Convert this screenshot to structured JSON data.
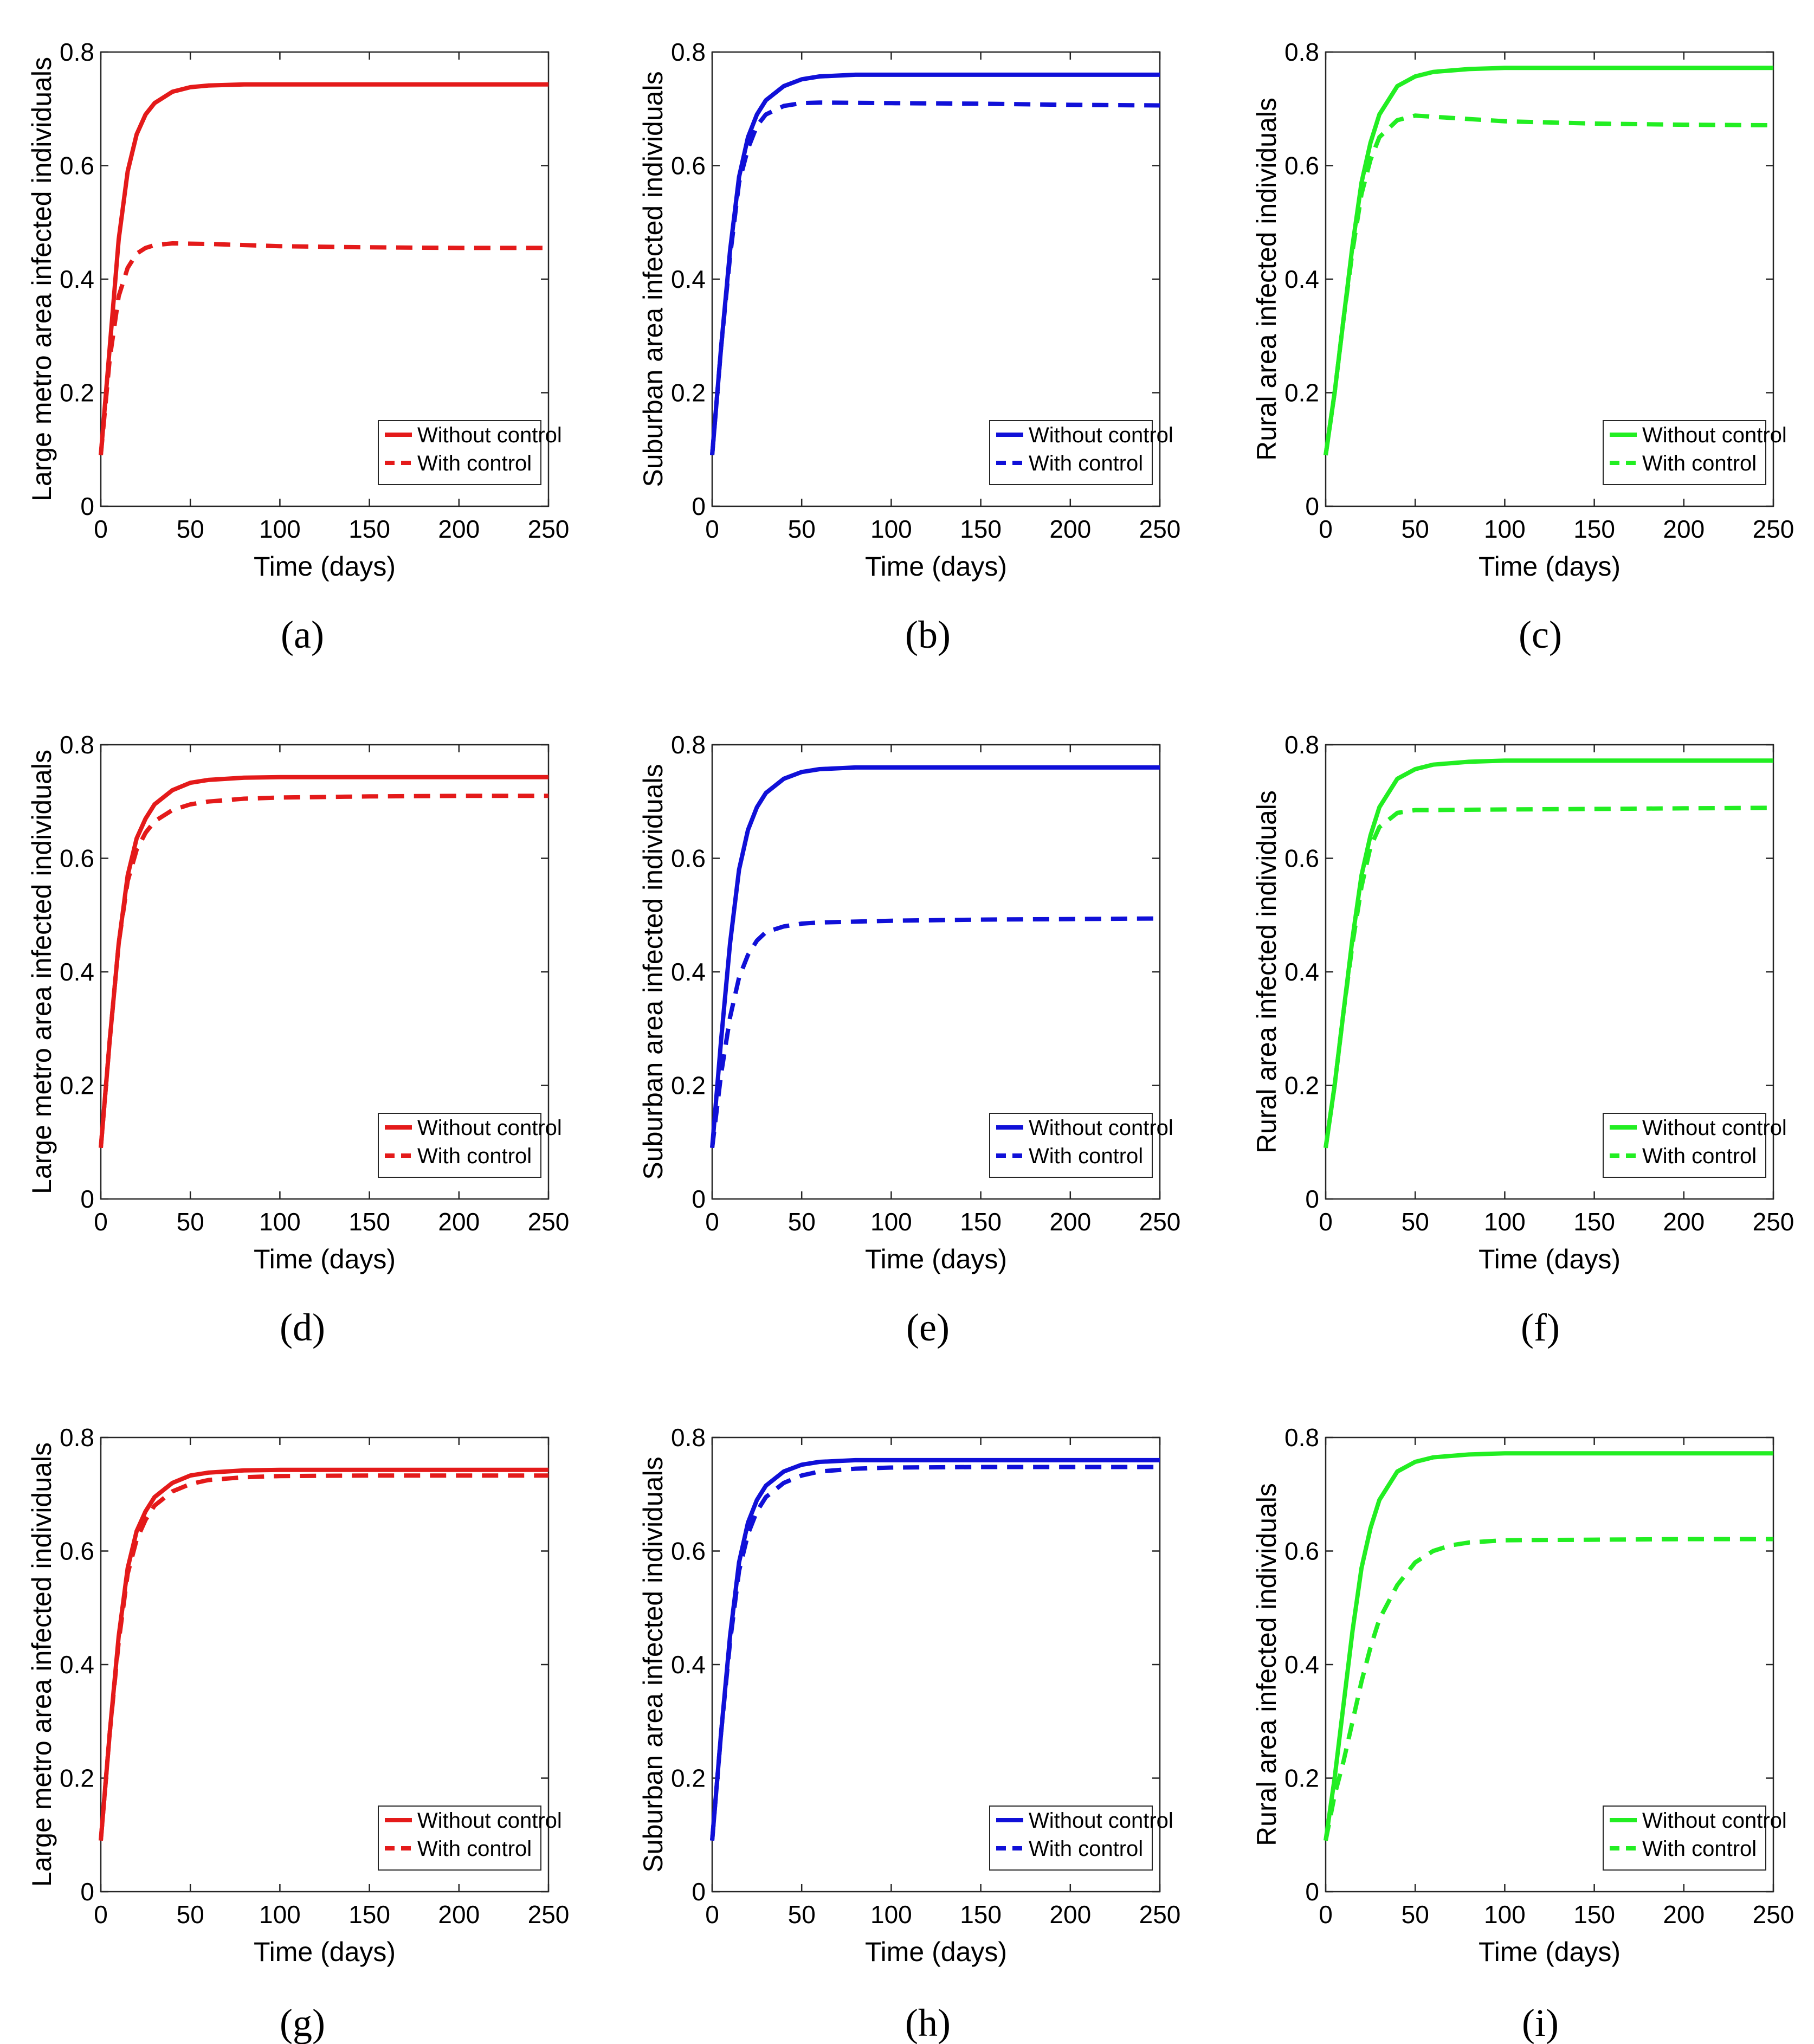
{
  "figure": {
    "colors": {
      "red": "#e41a1a",
      "blue": "#1010d8",
      "green": "#22ee22"
    },
    "legend_labels": [
      "Without control",
      "With control"
    ],
    "xlabel": "Time (days)"
  },
  "chart_data": [
    {
      "type": "line",
      "panel": "a",
      "caption": "(a)",
      "color": "#e41a1a",
      "ylabel": "Large metro area infected individuals",
      "xlabel": "Time (days)",
      "xlim": [
        0,
        250
      ],
      "ylim": [
        0,
        0.8
      ],
      "xticks": [
        0,
        50,
        100,
        150,
        200,
        250
      ],
      "yticks": [
        0,
        0.2,
        0.4,
        0.6,
        0.8
      ],
      "legend": "bottom-right",
      "series": [
        {
          "name": "Without control",
          "style": "solid",
          "x": [
            0,
            5,
            10,
            15,
            20,
            25,
            30,
            40,
            50,
            60,
            80,
            100,
            150,
            200,
            250
          ],
          "y": [
            0.09,
            0.28,
            0.47,
            0.59,
            0.655,
            0.69,
            0.71,
            0.73,
            0.738,
            0.741,
            0.743,
            0.743,
            0.743,
            0.743,
            0.743
          ]
        },
        {
          "name": "With control",
          "style": "dashed",
          "x": [
            0,
            5,
            10,
            15,
            20,
            25,
            30,
            40,
            60,
            100,
            150,
            200,
            250
          ],
          "y": [
            0.09,
            0.26,
            0.37,
            0.42,
            0.445,
            0.455,
            0.46,
            0.463,
            0.462,
            0.458,
            0.456,
            0.455,
            0.455
          ]
        }
      ]
    },
    {
      "type": "line",
      "panel": "b",
      "caption": "(b)",
      "color": "#1010d8",
      "ylabel": "Suburban area infected individuals",
      "xlabel": "Time (days)",
      "xlim": [
        0,
        250
      ],
      "ylim": [
        0,
        0.8
      ],
      "xticks": [
        0,
        50,
        100,
        150,
        200,
        250
      ],
      "yticks": [
        0,
        0.2,
        0.4,
        0.6,
        0.8
      ],
      "legend": "bottom-right",
      "series": [
        {
          "name": "Without control",
          "style": "solid",
          "x": [
            0,
            5,
            10,
            15,
            20,
            25,
            30,
            40,
            50,
            60,
            80,
            100,
            150,
            200,
            250
          ],
          "y": [
            0.09,
            0.28,
            0.45,
            0.58,
            0.65,
            0.69,
            0.715,
            0.74,
            0.752,
            0.757,
            0.76,
            0.76,
            0.76,
            0.76,
            0.76
          ]
        },
        {
          "name": "With control",
          "style": "dashed",
          "x": [
            0,
            5,
            10,
            15,
            20,
            25,
            30,
            40,
            50,
            60,
            100,
            150,
            200,
            250
          ],
          "y": [
            0.09,
            0.28,
            0.44,
            0.57,
            0.63,
            0.67,
            0.69,
            0.705,
            0.71,
            0.711,
            0.71,
            0.709,
            0.707,
            0.706
          ]
        }
      ]
    },
    {
      "type": "line",
      "panel": "c",
      "caption": "(c)",
      "color": "#22ee22",
      "ylabel": "Rural area infected individuals",
      "xlabel": "Time (days)",
      "xlim": [
        0,
        250
      ],
      "ylim": [
        0,
        0.8
      ],
      "xticks": [
        0,
        50,
        100,
        150,
        200,
        250
      ],
      "yticks": [
        0,
        0.2,
        0.4,
        0.6,
        0.8
      ],
      "legend": "bottom-right",
      "series": [
        {
          "name": "Without control",
          "style": "solid",
          "x": [
            0,
            5,
            10,
            15,
            20,
            25,
            30,
            40,
            50,
            60,
            80,
            100,
            150,
            200,
            250
          ],
          "y": [
            0.09,
            0.2,
            0.33,
            0.46,
            0.57,
            0.64,
            0.69,
            0.74,
            0.757,
            0.765,
            0.77,
            0.772,
            0.772,
            0.772,
            0.772
          ]
        },
        {
          "name": "With control",
          "style": "dashed",
          "x": [
            0,
            5,
            10,
            15,
            20,
            25,
            30,
            40,
            50,
            60,
            100,
            150,
            200,
            250
          ],
          "y": [
            0.09,
            0.2,
            0.33,
            0.45,
            0.55,
            0.61,
            0.65,
            0.68,
            0.688,
            0.686,
            0.678,
            0.674,
            0.672,
            0.671
          ]
        }
      ]
    },
    {
      "type": "line",
      "panel": "d",
      "caption": "(d)",
      "color": "#e41a1a",
      "ylabel": "Large metro area infected individuals",
      "xlabel": "Time (days)",
      "xlim": [
        0,
        250
      ],
      "ylim": [
        0,
        0.8
      ],
      "xticks": [
        0,
        50,
        100,
        150,
        200,
        250
      ],
      "yticks": [
        0,
        0.2,
        0.4,
        0.6,
        0.8
      ],
      "legend": "bottom-right",
      "series": [
        {
          "name": "Without control",
          "style": "solid",
          "x": [
            0,
            5,
            10,
            15,
            20,
            25,
            30,
            40,
            50,
            60,
            80,
            100,
            150,
            200,
            250
          ],
          "y": [
            0.09,
            0.28,
            0.45,
            0.57,
            0.635,
            0.67,
            0.695,
            0.72,
            0.733,
            0.738,
            0.742,
            0.743,
            0.743,
            0.743,
            0.743
          ]
        },
        {
          "name": "With control",
          "style": "dashed",
          "x": [
            0,
            5,
            10,
            15,
            20,
            25,
            30,
            40,
            50,
            60,
            80,
            100,
            150,
            200,
            250
          ],
          "y": [
            0.09,
            0.28,
            0.45,
            0.56,
            0.615,
            0.645,
            0.665,
            0.685,
            0.695,
            0.7,
            0.705,
            0.707,
            0.709,
            0.71,
            0.71
          ]
        }
      ]
    },
    {
      "type": "line",
      "panel": "e",
      "caption": "(e)",
      "color": "#1010d8",
      "ylabel": "Suburban area infected individuals",
      "xlabel": "Time (days)",
      "xlim": [
        0,
        250
      ],
      "ylim": [
        0,
        0.8
      ],
      "xticks": [
        0,
        50,
        100,
        150,
        200,
        250
      ],
      "yticks": [
        0,
        0.2,
        0.4,
        0.6,
        0.8
      ],
      "legend": "bottom-right",
      "series": [
        {
          "name": "Without control",
          "style": "solid",
          "x": [
            0,
            5,
            10,
            15,
            20,
            25,
            30,
            40,
            50,
            60,
            80,
            100,
            150,
            200,
            250
          ],
          "y": [
            0.09,
            0.28,
            0.45,
            0.58,
            0.65,
            0.69,
            0.715,
            0.74,
            0.752,
            0.757,
            0.76,
            0.76,
            0.76,
            0.76,
            0.76
          ]
        },
        {
          "name": "With control",
          "style": "dashed",
          "x": [
            0,
            5,
            10,
            15,
            20,
            25,
            30,
            40,
            50,
            60,
            100,
            150,
            200,
            250
          ],
          "y": [
            0.09,
            0.22,
            0.32,
            0.39,
            0.43,
            0.455,
            0.47,
            0.48,
            0.485,
            0.487,
            0.49,
            0.492,
            0.493,
            0.494
          ]
        }
      ]
    },
    {
      "type": "line",
      "panel": "f",
      "caption": "(f)",
      "color": "#22ee22",
      "ylabel": "Rural area infected individuals",
      "xlabel": "Time (days)",
      "xlim": [
        0,
        250
      ],
      "ylim": [
        0,
        0.8
      ],
      "xticks": [
        0,
        50,
        100,
        150,
        200,
        250
      ],
      "yticks": [
        0,
        0.2,
        0.4,
        0.6,
        0.8
      ],
      "legend": "bottom-right",
      "series": [
        {
          "name": "Without control",
          "style": "solid",
          "x": [
            0,
            5,
            10,
            15,
            20,
            25,
            30,
            40,
            50,
            60,
            80,
            100,
            150,
            200,
            250
          ],
          "y": [
            0.09,
            0.2,
            0.33,
            0.46,
            0.57,
            0.64,
            0.69,
            0.74,
            0.757,
            0.765,
            0.77,
            0.772,
            0.772,
            0.772,
            0.772
          ]
        },
        {
          "name": "With control",
          "style": "dashed",
          "x": [
            0,
            5,
            10,
            15,
            20,
            25,
            30,
            40,
            50,
            60,
            100,
            150,
            200,
            250
          ],
          "y": [
            0.09,
            0.2,
            0.33,
            0.45,
            0.55,
            0.62,
            0.655,
            0.68,
            0.685,
            0.685,
            0.686,
            0.687,
            0.688,
            0.689
          ]
        }
      ]
    },
    {
      "type": "line",
      "panel": "g",
      "caption": "(g)",
      "color": "#e41a1a",
      "ylabel": "Large metro area infected individuals",
      "xlabel": "Time (days)",
      "xlim": [
        0,
        250
      ],
      "ylim": [
        0,
        0.8
      ],
      "xticks": [
        0,
        50,
        100,
        150,
        200,
        250
      ],
      "yticks": [
        0,
        0.2,
        0.4,
        0.6,
        0.8
      ],
      "legend": "bottom-right",
      "series": [
        {
          "name": "Without control",
          "style": "solid",
          "x": [
            0,
            5,
            10,
            15,
            20,
            25,
            30,
            40,
            50,
            60,
            80,
            100,
            150,
            200,
            250
          ],
          "y": [
            0.09,
            0.28,
            0.45,
            0.57,
            0.635,
            0.67,
            0.695,
            0.72,
            0.733,
            0.738,
            0.742,
            0.743,
            0.743,
            0.743,
            0.743
          ]
        },
        {
          "name": "With control",
          "style": "dashed",
          "x": [
            0,
            5,
            10,
            15,
            20,
            25,
            30,
            40,
            50,
            60,
            80,
            100,
            150,
            200,
            250
          ],
          "y": [
            0.09,
            0.28,
            0.44,
            0.56,
            0.62,
            0.655,
            0.68,
            0.705,
            0.718,
            0.725,
            0.73,
            0.732,
            0.733,
            0.733,
            0.733
          ]
        }
      ]
    },
    {
      "type": "line",
      "panel": "h",
      "caption": "(h)",
      "color": "#1010d8",
      "ylabel": "Suburban area infected individuals",
      "xlabel": "Time (days)",
      "xlim": [
        0,
        250
      ],
      "ylim": [
        0,
        0.8
      ],
      "xticks": [
        0,
        50,
        100,
        150,
        200,
        250
      ],
      "yticks": [
        0,
        0.2,
        0.4,
        0.6,
        0.8
      ],
      "legend": "bottom-right",
      "series": [
        {
          "name": "Without control",
          "style": "solid",
          "x": [
            0,
            5,
            10,
            15,
            20,
            25,
            30,
            40,
            50,
            60,
            80,
            100,
            150,
            200,
            250
          ],
          "y": [
            0.09,
            0.28,
            0.45,
            0.58,
            0.65,
            0.69,
            0.715,
            0.74,
            0.752,
            0.757,
            0.76,
            0.76,
            0.76,
            0.76,
            0.76
          ]
        },
        {
          "name": "With control",
          "style": "dashed",
          "x": [
            0,
            5,
            10,
            15,
            20,
            25,
            30,
            40,
            50,
            60,
            80,
            100,
            150,
            200,
            250
          ],
          "y": [
            0.09,
            0.28,
            0.44,
            0.565,
            0.63,
            0.67,
            0.695,
            0.72,
            0.733,
            0.74,
            0.745,
            0.747,
            0.748,
            0.748,
            0.748
          ]
        }
      ]
    },
    {
      "type": "line",
      "panel": "i",
      "caption": "(i)",
      "color": "#22ee22",
      "ylabel": "Rural area infected individuals",
      "xlabel": "Time (days)",
      "xlim": [
        0,
        250
      ],
      "ylim": [
        0,
        0.8
      ],
      "xticks": [
        0,
        50,
        100,
        150,
        200,
        250
      ],
      "yticks": [
        0,
        0.2,
        0.4,
        0.6,
        0.8
      ],
      "legend": "bottom-right",
      "series": [
        {
          "name": "Without control",
          "style": "solid",
          "x": [
            0,
            5,
            10,
            15,
            20,
            25,
            30,
            40,
            50,
            60,
            80,
            100,
            150,
            200,
            250
          ],
          "y": [
            0.09,
            0.2,
            0.33,
            0.46,
            0.57,
            0.64,
            0.69,
            0.74,
            0.757,
            0.765,
            0.77,
            0.772,
            0.772,
            0.772,
            0.772
          ]
        },
        {
          "name": "With control",
          "style": "dashed",
          "x": [
            0,
            5,
            10,
            15,
            20,
            25,
            30,
            40,
            50,
            60,
            70,
            80,
            100,
            150,
            200,
            250
          ],
          "y": [
            0.09,
            0.17,
            0.23,
            0.3,
            0.37,
            0.43,
            0.48,
            0.54,
            0.58,
            0.6,
            0.61,
            0.615,
            0.619,
            0.62,
            0.621,
            0.621
          ]
        }
      ]
    }
  ]
}
